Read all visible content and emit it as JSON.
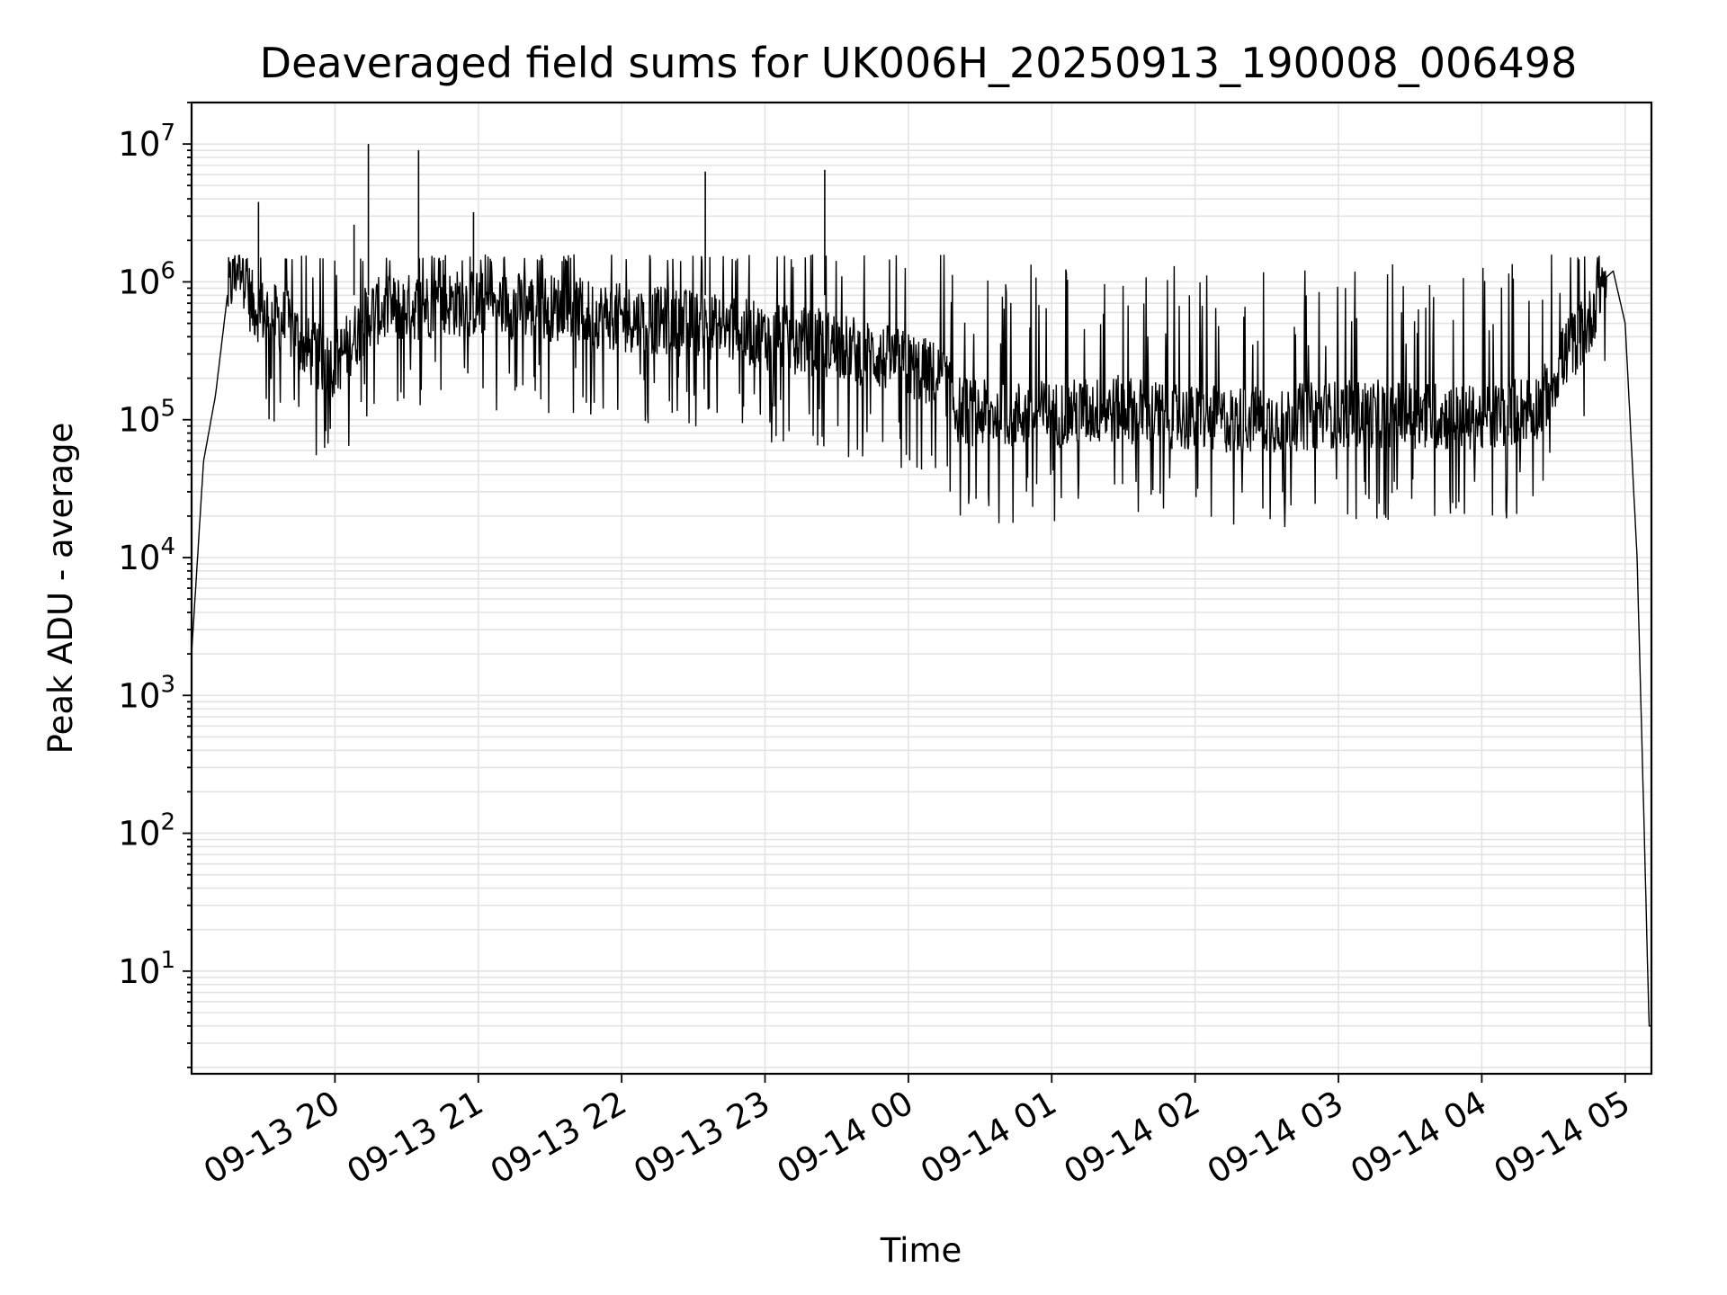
{
  "chart_data": {
    "type": "line",
    "title": "Deaveraged field sums for UK006H_20250913_190008_006498",
    "xlabel": "Time",
    "ylabel": "Peak ADU - average",
    "yscale": "log",
    "ylim": [
      1.8,
      20000000
    ],
    "xlim": [
      "09-13 19:00",
      "09-14 05:11"
    ],
    "grid": true,
    "line_color": "#000000",
    "x_ticks": [
      "09-13 20",
      "09-13 21",
      "09-13 22",
      "09-13 23",
      "09-14 00",
      "09-14 01",
      "09-14 02",
      "09-14 03",
      "09-14 04",
      "09-14 05"
    ],
    "y_ticks": [
      {
        "base": "10",
        "exp": "1",
        "value": 10
      },
      {
        "base": "10",
        "exp": "2",
        "value": 100
      },
      {
        "base": "10",
        "exp": "3",
        "value": 1000
      },
      {
        "base": "10",
        "exp": "4",
        "value": 10000
      },
      {
        "base": "10",
        "exp": "5",
        "value": 100000
      },
      {
        "base": "10",
        "exp": "6",
        "value": 1000000
      },
      {
        "base": "10",
        "exp": "7",
        "value": 10000000
      }
    ],
    "series": [
      {
        "x": [
          "09-13 19:00",
          "09-13 19:05",
          "09-13 19:10",
          "09-13 19:15",
          "09-13 19:20",
          "09-13 19:25",
          "09-13 19:30",
          "09-13 19:40",
          "09-13 19:50",
          "09-13 20:00",
          "09-13 20:08",
          "09-13 20:15",
          "09-13 20:30",
          "09-13 20:45",
          "09-13 21:00",
          "09-13 21:30",
          "09-13 22:00",
          "09-13 22:30",
          "09-13 23:00",
          "09-13 23:30",
          "09-14 00:00",
          "09-14 00:15",
          "09-14 00:20",
          "09-14 00:30",
          "09-14 01:00",
          "09-14 01:30",
          "09-14 02:00",
          "09-14 02:30",
          "09-14 03:00",
          "09-14 03:30",
          "09-14 04:00",
          "09-14 04:25",
          "09-14 04:35",
          "09-14 04:45",
          "09-14 04:50",
          "09-14 04:55",
          "09-14 05:00",
          "09-14 05:05",
          "09-14 05:08",
          "09-14 05:10",
          "09-14 05:11"
        ],
        "y": [
          2000,
          50000,
          150000,
          800000,
          1500000,
          700000,
          600000,
          500000,
          300000,
          250000,
          400000,
          600000,
          650000,
          700000,
          700000,
          650000,
          550000,
          500000,
          400000,
          350000,
          250000,
          200000,
          120000,
          110000,
          110000,
          120000,
          100000,
          100000,
          110000,
          110000,
          100000,
          130000,
          300000,
          500000,
          1000000,
          1200000,
          500000,
          10000,
          100,
          4,
          4
        ]
      }
    ],
    "spikes": [
      {
        "x": "09-13 19:28",
        "y": 3800000
      },
      {
        "x": "09-13 20:08",
        "y": 2600000
      },
      {
        "x": "09-13 20:14",
        "y": 10000000
      },
      {
        "x": "09-13 20:35",
        "y": 9000000
      },
      {
        "x": "09-13 20:58",
        "y": 3200000
      },
      {
        "x": "09-13 22:35",
        "y": 6300000
      },
      {
        "x": "09-13 23:25",
        "y": 6500000
      }
    ]
  }
}
